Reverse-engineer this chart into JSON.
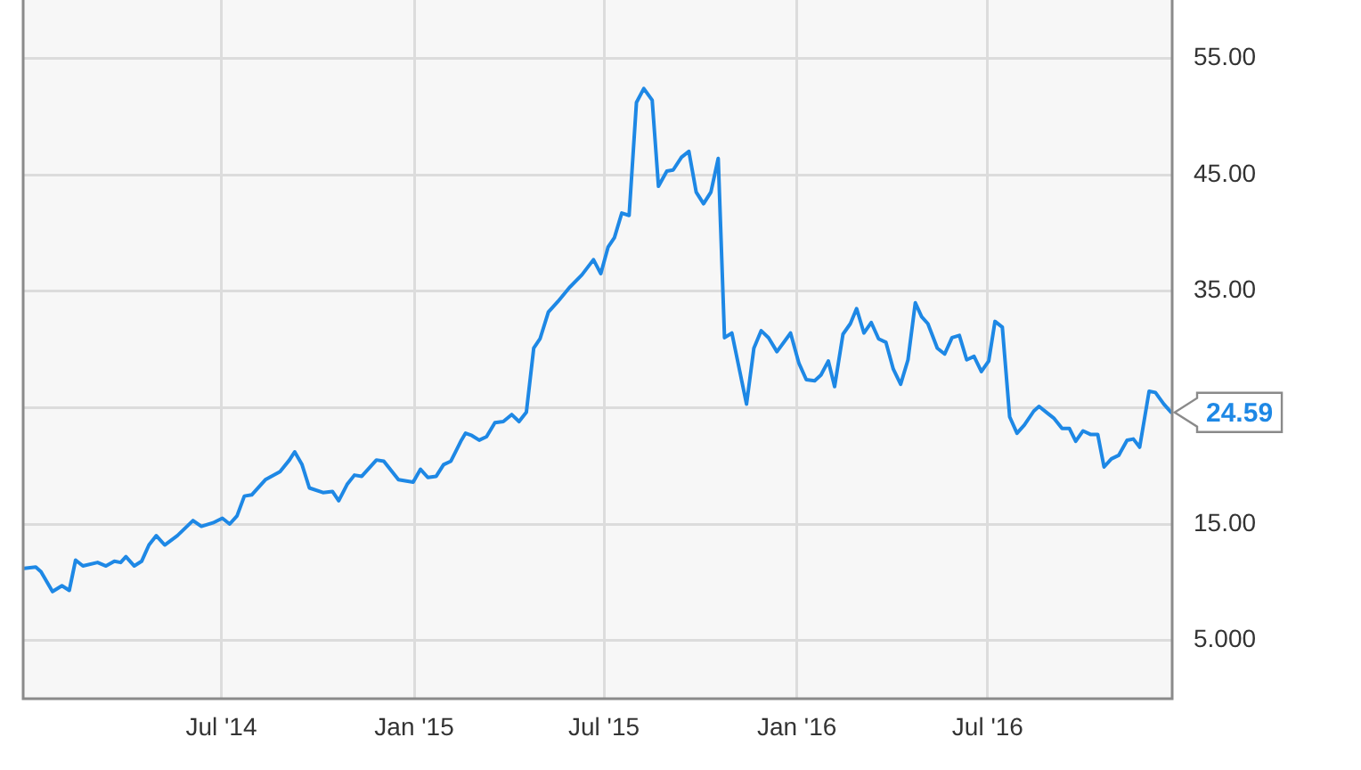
{
  "chart_data": {
    "type": "line",
    "x": [
      "2013-12-25",
      "2014-01-05",
      "2014-01-10",
      "2014-01-21",
      "2014-01-30",
      "2014-02-06",
      "2014-02-12",
      "2014-02-19",
      "2014-03-05",
      "2014-03-13",
      "2014-03-21",
      "2014-03-27",
      "2014-04-01",
      "2014-04-09",
      "2014-04-16",
      "2014-04-23",
      "2014-04-30",
      "2014-05-08",
      "2014-05-20",
      "2014-06-04",
      "2014-06-12",
      "2014-06-23",
      "2014-07-02",
      "2014-07-09",
      "2014-07-16",
      "2014-07-23",
      "2014-07-30",
      "2014-08-12",
      "2014-08-26",
      "2014-09-04",
      "2014-09-09",
      "2014-09-16",
      "2014-09-23",
      "2014-10-06",
      "2014-10-15",
      "2014-10-21",
      "2014-10-29",
      "2014-11-05",
      "2014-11-12",
      "2014-11-26",
      "2014-12-03",
      "2014-12-17",
      "2014-12-31",
      "2015-01-07",
      "2015-01-14",
      "2015-01-22",
      "2015-01-29",
      "2015-02-05",
      "2015-02-15",
      "2015-02-19",
      "2015-02-25",
      "2015-03-04",
      "2015-03-11",
      "2015-03-19",
      "2015-03-27",
      "2015-04-04",
      "2015-04-11",
      "2015-04-18",
      "2015-04-25",
      "2015-05-01",
      "2015-05-09",
      "2015-05-18",
      "2015-05-29",
      "2015-06-10",
      "2015-06-21",
      "2015-06-28",
      "2015-07-05",
      "2015-07-11",
      "2015-07-18",
      "2015-07-25",
      "2015-08-01",
      "2015-08-08",
      "2015-08-16",
      "2015-08-22",
      "2015-08-30",
      "2015-09-05",
      "2015-09-13",
      "2015-09-20",
      "2015-09-27",
      "2015-10-04",
      "2015-10-11",
      "2015-10-18",
      "2015-10-24",
      "2015-10-31",
      "2015-11-14",
      "2015-11-21",
      "2015-11-28",
      "2015-12-05",
      "2015-12-13",
      "2015-12-26",
      "2016-01-03",
      "2016-01-10",
      "2016-01-18",
      "2016-01-24",
      "2016-01-31",
      "2016-02-06",
      "2016-02-14",
      "2016-02-21",
      "2016-02-27",
      "2016-03-05",
      "2016-03-12",
      "2016-03-19",
      "2016-03-26",
      "2016-04-02",
      "2016-04-09",
      "2016-04-16",
      "2016-04-23",
      "2016-04-29",
      "2016-05-05",
      "2016-05-14",
      "2016-05-21",
      "2016-05-28",
      "2016-06-04",
      "2016-06-11",
      "2016-06-18",
      "2016-06-25",
      "2016-07-02",
      "2016-07-08",
      "2016-07-15",
      "2016-07-22",
      "2016-07-29",
      "2016-08-05",
      "2016-08-14",
      "2016-08-19",
      "2016-08-26",
      "2016-09-02",
      "2016-09-10",
      "2016-09-17",
      "2016-09-23",
      "2016-09-30",
      "2016-10-07",
      "2016-10-14",
      "2016-10-20",
      "2016-10-27",
      "2016-11-03",
      "2016-11-11",
      "2016-11-17",
      "2016-11-23",
      "2016-12-02",
      "2016-12-08",
      "2016-12-16",
      "2016-12-23"
    ],
    "series": [
      {
        "color": "#1e88e5",
        "values": [
          11.2,
          11.3,
          10.9,
          9.2,
          9.7,
          9.3,
          11.9,
          11.4,
          11.7,
          11.4,
          11.8,
          11.7,
          12.2,
          11.4,
          11.8,
          13.2,
          14.0,
          13.2,
          14.0,
          15.3,
          14.8,
          15.1,
          15.5,
          15.0,
          15.7,
          17.4,
          17.5,
          18.8,
          19.5,
          20.5,
          21.2,
          20.1,
          18.1,
          17.7,
          17.8,
          17.0,
          18.4,
          19.2,
          19.1,
          20.5,
          20.4,
          18.8,
          18.6,
          19.7,
          19.0,
          19.1,
          20.1,
          20.4,
          22.2,
          22.8,
          22.6,
          22.2,
          22.5,
          23.7,
          23.8,
          24.4,
          23.8,
          24.6,
          30.1,
          30.9,
          33.2,
          34.1,
          35.3,
          36.4,
          37.7,
          36.5,
          38.8,
          39.6,
          41.7,
          41.5,
          51.2,
          52.4,
          51.4,
          44.0,
          45.3,
          45.4,
          46.5,
          47.0,
          43.5,
          42.5,
          43.5,
          46.4,
          31.0,
          31.4,
          25.3,
          30.1,
          31.6,
          31.0,
          29.8,
          31.4,
          28.8,
          27.4,
          27.3,
          27.8,
          29.0,
          26.8,
          31.3,
          32.2,
          33.5,
          31.4,
          32.3,
          30.9,
          30.6,
          28.3,
          27.0,
          29.1,
          34.0,
          32.8,
          32.2,
          30.1,
          29.6,
          31.0,
          31.2,
          29.1,
          29.4,
          28.1,
          29.0,
          32.4,
          31.9,
          24.2,
          22.8,
          23.5,
          24.7,
          25.1,
          24.6,
          24.1,
          23.2,
          23.2,
          22.1,
          23.0,
          22.7,
          22.7,
          19.9,
          20.6,
          20.9,
          22.2,
          22.3,
          21.6,
          26.4,
          26.3,
          25.3,
          24.59
        ]
      }
    ],
    "xlim": [
      "2013-12-24",
      "2016-12-24"
    ],
    "xticks": [
      {
        "value": "2014-07-01",
        "label": "Jul '14"
      },
      {
        "value": "2015-01-01",
        "label": "Jan '15"
      },
      {
        "value": "2015-07-01",
        "label": "Jul '15"
      },
      {
        "value": "2016-01-01",
        "label": "Jan '16"
      },
      {
        "value": "2016-07-01",
        "label": "Jul '16"
      }
    ],
    "ylim": [
      0,
      60
    ],
    "yticks": [
      {
        "value": 5,
        "label": "5.000"
      },
      {
        "value": 15,
        "label": "15.00"
      },
      {
        "value": 25,
        "label": null
      },
      {
        "value": 35,
        "label": "35.00"
      },
      {
        "value": 45,
        "label": "45.00"
      },
      {
        "value": 55,
        "label": "55.00"
      }
    ],
    "annotations": [
      {
        "text": "24.59",
        "x": "2016-12-23",
        "y": 24.59
      }
    ],
    "grid": true,
    "legend": false,
    "marker": "none",
    "line_style": "solid"
  }
}
